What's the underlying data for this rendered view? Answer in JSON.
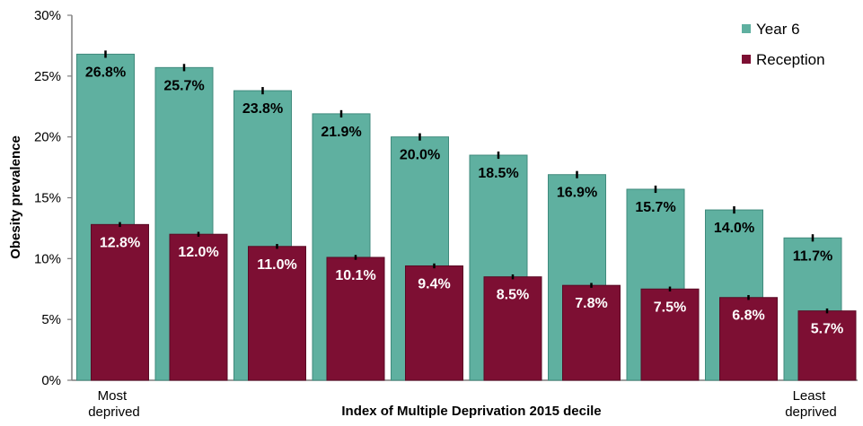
{
  "chart_data": {
    "type": "bar",
    "xlabel": "Index of Multiple Deprivation 2015 decile",
    "ylabel": "Obesity prevalence",
    "ylim": [
      0,
      30
    ],
    "y_tick_labels": [
      "0%",
      "5%",
      "10%",
      "15%",
      "20%",
      "25%",
      "30%"
    ],
    "categories": [
      "Most deprived",
      "",
      "",
      "",
      "",
      "",
      "",
      "",
      "",
      "Least deprived"
    ],
    "category_label_lines": {
      "first": [
        "Most",
        "deprived"
      ],
      "last": [
        "Least",
        "deprived"
      ]
    },
    "grid": false,
    "error_bars": true,
    "bar_mode": "overlapping",
    "legend_position": "top-right",
    "series": [
      {
        "name": "Year 6",
        "color": "#5fb0a0",
        "values": [
          26.8,
          25.7,
          23.8,
          21.9,
          20.0,
          18.5,
          16.9,
          15.7,
          14.0,
          11.7
        ],
        "labels": [
          "26.8%",
          "25.7%",
          "23.8%",
          "21.9%",
          "20.0%",
          "18.5%",
          "16.9%",
          "15.7%",
          "14.0%",
          "11.7%"
        ],
        "error_margin": 0.3,
        "label_color": "#000000"
      },
      {
        "name": "Reception",
        "color": "#7d0f33",
        "values": [
          12.8,
          12.0,
          11.0,
          10.1,
          9.4,
          8.5,
          7.8,
          7.5,
          6.8,
          5.7
        ],
        "labels": [
          "12.8%",
          "12.0%",
          "11.0%",
          "10.1%",
          "9.4%",
          "8.5%",
          "7.8%",
          "7.5%",
          "6.8%",
          "5.7%"
        ],
        "error_margin": 0.2,
        "label_color": "#ffffff"
      }
    ]
  }
}
